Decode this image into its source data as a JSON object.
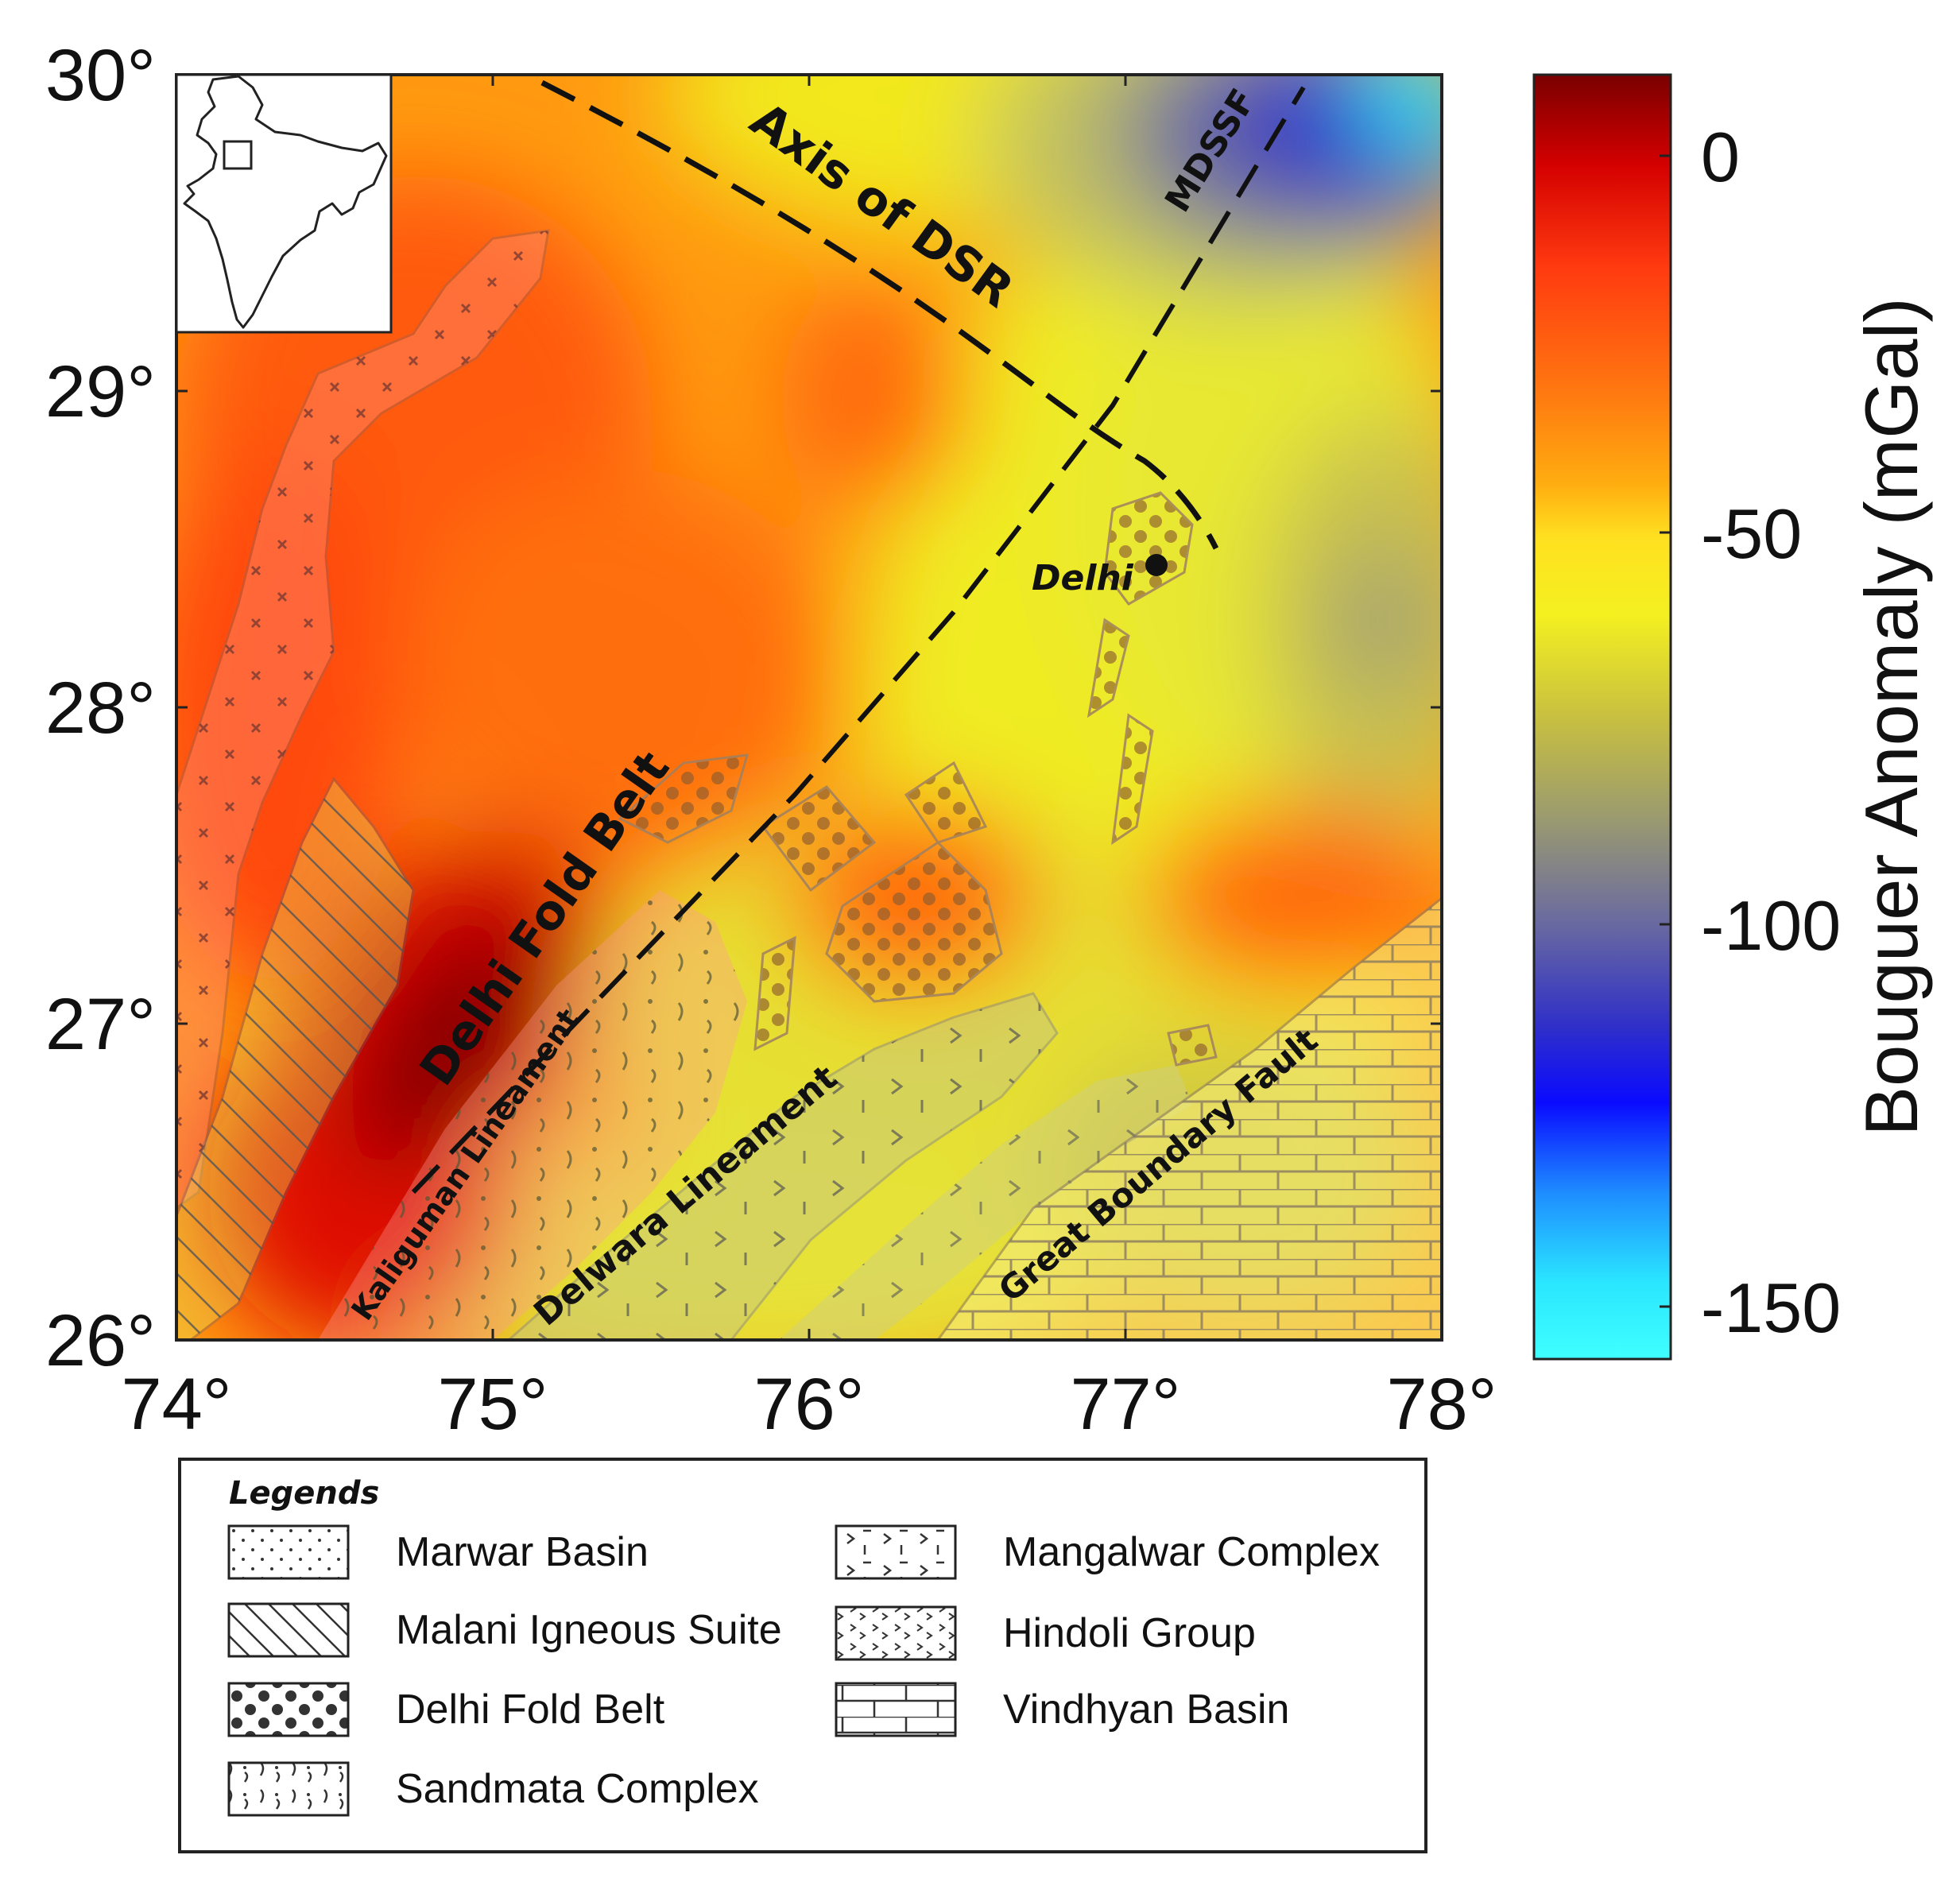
{
  "map": {
    "lon_ticks": [
      "74°",
      "75°",
      "76°",
      "77°",
      "78°"
    ],
    "lat_ticks": [
      "30°",
      "29°",
      "28°",
      "27°",
      "26°"
    ],
    "features": {
      "axis_dsr": "Axis of DSR",
      "mdssf": "MDSSF",
      "delhi": "Delhi",
      "delhi_fold_belt": "Delhi Fold Belt",
      "kaliguman": "Kaliguman Lineament",
      "delwara": "Delwara Lineament",
      "great_boundary": "Great Boundary Fault"
    }
  },
  "colorbar": {
    "title": "Bouguer Anomaly (mGal)",
    "ticks": [
      "0",
      "-50",
      "-100",
      "-150"
    ],
    "colors": [
      "#7a0000",
      "#d40000",
      "#ff3a10",
      "#ff7a10",
      "#ffae10",
      "#ffe020",
      "#f4f020",
      "#c8c040",
      "#9a9a70",
      "#6a6aa0",
      "#3030c8",
      "#0a0aff",
      "#1e8cff",
      "#2ae6ff",
      "#40ffff"
    ]
  },
  "legend": {
    "title": "Legends",
    "items": [
      {
        "label": "Marwar Basin",
        "pattern": "dots"
      },
      {
        "label": "Malani Igneous Suite",
        "pattern": "hatch"
      },
      {
        "label": "Delhi Fold Belt",
        "pattern": "circles"
      },
      {
        "label": "Sandmata Complex",
        "pattern": "curls"
      },
      {
        "label": "Mangalwar Complex",
        "pattern": "chevrons-dashes"
      },
      {
        "label": "Hindoli Group",
        "pattern": "chevrons"
      },
      {
        "label": "Vindhyan Basin",
        "pattern": "bricks"
      }
    ]
  }
}
